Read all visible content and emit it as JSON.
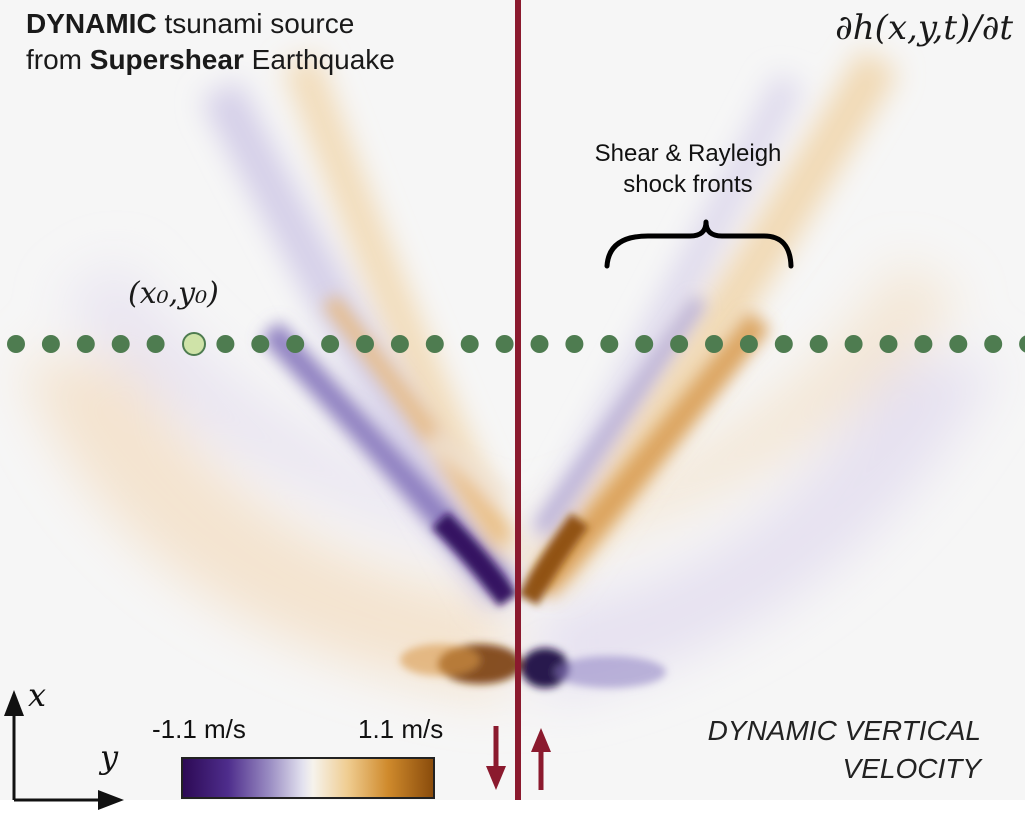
{
  "title": {
    "line1_bold": "DYNAMIC",
    "line1_rest": " tsunami source",
    "line2_start": "from ",
    "line2_bold": "Supershear",
    "line2_rest": " Earthquake"
  },
  "equation": "∂h(x,y,t)/∂t",
  "point_label": "(x₀,y₀)",
  "annotation": {
    "line1": "Shear & Rayleigh",
    "line2": "shock fronts"
  },
  "colorbar": {
    "min_label": "-1.1 m/s",
    "max_label": "1.1 m/s",
    "colors": [
      "#2d0a55",
      "#4e2d8c",
      "#9c8fc4",
      "#f6f3ec",
      "#cf8a2c",
      "#8a4c0c"
    ]
  },
  "axes": {
    "x_label": "x",
    "y_label": "y"
  },
  "legend": {
    "line1": "DYNAMIC VERTICAL",
    "line2": "VELOCITY"
  },
  "colors": {
    "fault_line": "#8b1a2e",
    "dots": "#4e7c50",
    "highlight_dot": "#cfe3a8",
    "positive": "#b8650f",
    "negative": "#3a1a78"
  }
}
